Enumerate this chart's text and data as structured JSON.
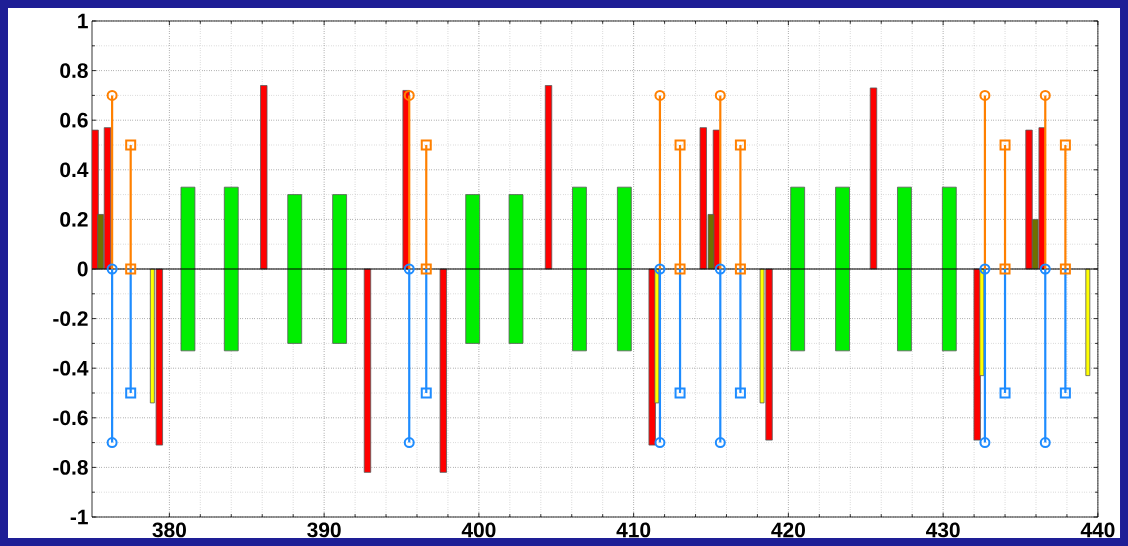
{
  "chart_data": {
    "type": "bar",
    "xlim": [
      375,
      440
    ],
    "xticks": [
      380,
      390,
      400,
      410,
      420,
      430,
      440
    ],
    "ylim": [
      -1,
      1
    ],
    "yticks": [
      -1,
      -0.8,
      -0.6,
      -0.4,
      -0.2,
      0,
      0.2,
      0.4,
      0.6,
      0.8,
      1
    ],
    "grid": true,
    "ref_lines": [
      {
        "axis": "y",
        "value": 0,
        "color": "#000000"
      }
    ],
    "series": [
      {
        "color": "#00ee00",
        "x": [
          381.2,
          384.0,
          388.1,
          391.0,
          399.6,
          402.4,
          406.5,
          409.4,
          420.6,
          423.5,
          427.5,
          430.4
        ],
        "base": [
          -0.33,
          -0.33,
          -0.3,
          -0.3,
          -0.3,
          -0.3,
          -0.33,
          -0.33,
          -0.33,
          -0.33,
          -0.33,
          -0.33
        ],
        "values": [
          0.66,
          0.66,
          0.6,
          0.6,
          0.6,
          0.6,
          0.66,
          0.66,
          0.66,
          0.66,
          0.66,
          0.66
        ]
      },
      {
        "color": "#ff0000",
        "x": [
          375.2,
          376.0,
          379.35,
          386.1,
          392.8,
          395.3,
          397.7,
          404.5,
          411.2,
          414.5,
          415.35,
          418.75,
          425.5,
          432.2,
          435.55,
          436.4
        ],
        "values": [
          0.56,
          0.57,
          -0.71,
          0.74,
          -0.82,
          0.72,
          -0.82,
          0.74,
          -0.71,
          0.57,
          0.56,
          -0.69,
          0.73,
          -0.69,
          0.56,
          0.57
        ]
      },
      {
        "color": "#707000",
        "x": [
          375.55,
          415.0,
          435.95
        ],
        "values": [
          0.22,
          0.22,
          0.2
        ]
      },
      {
        "color": "#ffff00",
        "x": [
          378.9,
          411.5,
          418.3,
          432.5,
          439.35
        ],
        "values": [
          -0.54,
          -0.54,
          -0.54,
          -0.43,
          -0.43
        ]
      },
      {
        "type": "lollipop",
        "color": "#ff8000",
        "marker": "circle",
        "x": [
          376.3,
          395.5,
          411.7,
          415.6,
          432.7,
          436.6
        ],
        "values": [
          0.7,
          0.7,
          0.7,
          0.7,
          0.7,
          0.7
        ]
      },
      {
        "type": "lollipop",
        "color": "#ff8000",
        "marker": "square",
        "x": [
          377.5,
          396.6,
          413.0,
          416.9,
          434.0,
          437.9
        ],
        "values": [
          0.5,
          0.5,
          0.5,
          0.5,
          0.5,
          0.5
        ]
      },
      {
        "type": "lollipop",
        "color": "#1e8cff",
        "marker": "circle",
        "x": [
          376.3,
          395.5,
          411.7,
          415.6,
          432.7,
          436.6
        ],
        "values": [
          -0.7,
          -0.7,
          -0.7,
          -0.7,
          -0.7,
          -0.7
        ]
      },
      {
        "type": "lollipop",
        "color": "#1e8cff",
        "marker": "square",
        "x": [
          377.5,
          396.6,
          413.0,
          416.9,
          434.0,
          437.9
        ],
        "values": [
          -0.5,
          -0.5,
          -0.5,
          -0.5,
          -0.5,
          -0.5
        ]
      },
      {
        "type": "scatter",
        "color": "#1e8cff",
        "marker": "circle",
        "x": [
          376.3,
          395.5,
          411.7,
          415.6,
          432.7,
          436.6
        ],
        "values": [
          0,
          0,
          0,
          0,
          0,
          0
        ]
      },
      {
        "type": "scatter",
        "color": "#ff8000",
        "marker": "square",
        "x": [
          377.5,
          396.6,
          413.0,
          416.9,
          434.0,
          437.9
        ],
        "values": [
          0,
          0,
          0,
          0,
          0,
          0
        ]
      }
    ]
  }
}
